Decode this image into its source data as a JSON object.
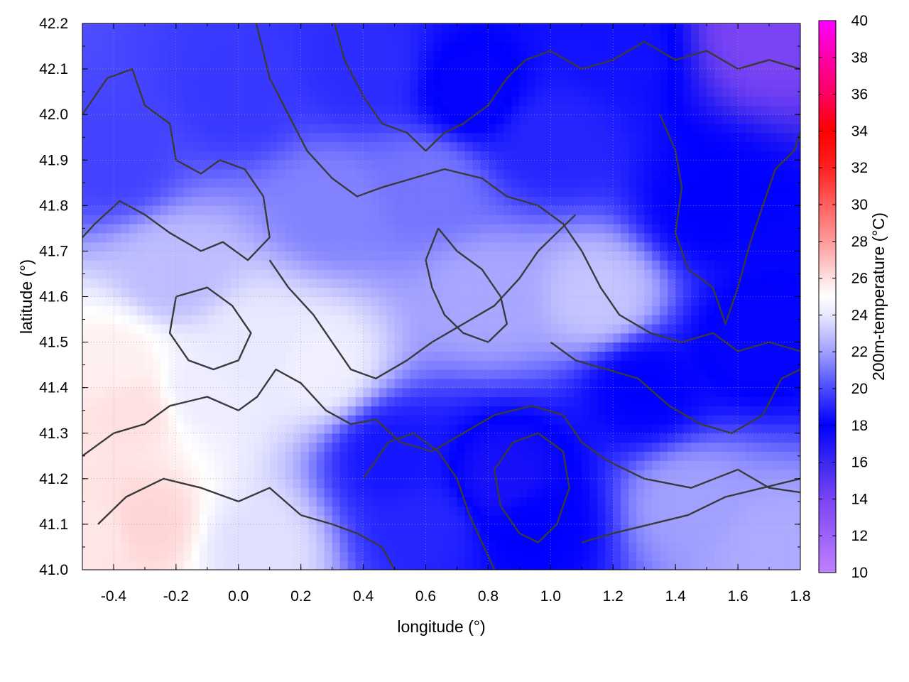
{
  "chart_data": {
    "type": "heatmap",
    "title": "",
    "xlabel": "longitude (°)",
    "ylabel": "latitude (°)",
    "colorbar_label": "200m-temperature (°C)",
    "xlim": [
      -0.5,
      1.8
    ],
    "ylim": [
      41.0,
      42.2
    ],
    "xticks": [
      "-0.4",
      "-0.2",
      "0.0",
      "0.2",
      "0.4",
      "0.6",
      "0.8",
      "1.0",
      "1.2",
      "1.4",
      "1.6",
      "1.8"
    ],
    "xtick_values": [
      -0.4,
      -0.2,
      0.0,
      0.2,
      0.4,
      0.6,
      0.8,
      1.0,
      1.2,
      1.4,
      1.6,
      1.8
    ],
    "yticks": [
      "41.0",
      "41.1",
      "41.2",
      "41.3",
      "41.4",
      "41.5",
      "41.6",
      "41.7",
      "41.8",
      "41.9",
      "42.0",
      "42.1",
      "42.2"
    ],
    "ytick_values": [
      41.0,
      41.1,
      41.2,
      41.3,
      41.4,
      41.5,
      41.6,
      41.7,
      41.8,
      41.9,
      42.0,
      42.1,
      42.2
    ],
    "colorbar_range": [
      10,
      40
    ],
    "colorbar_ticks": [
      "10",
      "12",
      "14",
      "16",
      "18",
      "20",
      "22",
      "24",
      "26",
      "28",
      "30",
      "32",
      "34",
      "36",
      "38",
      "40"
    ],
    "colorbar_tick_values": [
      10,
      12,
      14,
      16,
      18,
      20,
      22,
      24,
      26,
      28,
      30,
      32,
      34,
      36,
      38,
      40
    ],
    "colormap": [
      {
        "v": 10,
        "color": "#c080ff"
      },
      {
        "v": 14,
        "color": "#7a44f4"
      },
      {
        "v": 16,
        "color": "#3a28f0"
      },
      {
        "v": 18,
        "color": "#0000ff"
      },
      {
        "v": 20,
        "color": "#4a4aff"
      },
      {
        "v": 22,
        "color": "#a0a0ff"
      },
      {
        "v": 24,
        "color": "#e8e8ff"
      },
      {
        "v": 25,
        "color": "#ffffff"
      },
      {
        "v": 26,
        "color": "#ffe0e0"
      },
      {
        "v": 28,
        "color": "#ff9a9a"
      },
      {
        "v": 30,
        "color": "#ff6060"
      },
      {
        "v": 32,
        "color": "#ff2020"
      },
      {
        "v": 34,
        "color": "#ff0000"
      },
      {
        "v": 36,
        "color": "#ff0060"
      },
      {
        "v": 38,
        "color": "#ff00a8"
      },
      {
        "v": 40,
        "color": "#ff00ff"
      }
    ],
    "grid": true,
    "temperature_field": [
      {
        "lon": -0.45,
        "lat": 41.08,
        "t": 25.8
      },
      {
        "lon": -0.3,
        "lat": 41.1,
        "t": 26.3
      },
      {
        "lon": -0.35,
        "lat": 41.35,
        "t": 26.0
      },
      {
        "lon": -0.4,
        "lat": 41.45,
        "t": 25.5
      },
      {
        "lon": -0.1,
        "lat": 41.4,
        "t": 24.2
      },
      {
        "lon": 0.05,
        "lat": 41.5,
        "t": 24.0
      },
      {
        "lon": 0.25,
        "lat": 41.45,
        "t": 24.3
      },
      {
        "lon": 0.05,
        "lat": 41.05,
        "t": 23.8
      },
      {
        "lon": -0.2,
        "lat": 41.65,
        "t": 22.8
      },
      {
        "lon": 0.8,
        "lat": 41.6,
        "t": 22.2
      },
      {
        "lon": 1.15,
        "lat": 41.6,
        "t": 23.0
      },
      {
        "lon": 1.45,
        "lat": 41.15,
        "t": 22.0
      },
      {
        "lon": 1.7,
        "lat": 41.05,
        "t": 22.3
      },
      {
        "lon": 0.3,
        "lat": 41.8,
        "t": 21.3
      },
      {
        "lon": 0.6,
        "lat": 41.85,
        "t": 21.0
      },
      {
        "lon": -0.4,
        "lat": 41.9,
        "t": 19.8
      },
      {
        "lon": 0.0,
        "lat": 42.05,
        "t": 19.5
      },
      {
        "lon": 0.4,
        "lat": 42.1,
        "t": 19.2
      },
      {
        "lon": 0.75,
        "lat": 42.05,
        "t": 17.8
      },
      {
        "lon": 1.0,
        "lat": 41.95,
        "t": 19.0
      },
      {
        "lon": 1.5,
        "lat": 41.8,
        "t": 18.0
      },
      {
        "lon": 1.65,
        "lat": 41.5,
        "t": 17.8
      },
      {
        "lon": 1.3,
        "lat": 41.4,
        "t": 18.0
      },
      {
        "lon": 0.5,
        "lat": 41.25,
        "t": 18.6
      },
      {
        "lon": 0.85,
        "lat": 41.2,
        "t": 17.2
      },
      {
        "lon": 0.95,
        "lat": 41.1,
        "t": 18.0
      },
      {
        "lon": 0.6,
        "lat": 41.1,
        "t": 19.0
      },
      {
        "lon": 1.7,
        "lat": 42.18,
        "t": 14.0
      },
      {
        "lon": 1.2,
        "lat": 42.15,
        "t": 18.5
      }
    ],
    "contours": [
      [
        [
          -0.5,
          42.0
        ],
        [
          -0.42,
          42.08
        ],
        [
          -0.34,
          42.1
        ],
        [
          -0.3,
          42.02
        ],
        [
          -0.22,
          41.98
        ],
        [
          -0.2,
          41.9
        ],
        [
          -0.12,
          41.87
        ],
        [
          -0.06,
          41.9
        ],
        [
          0.02,
          41.88
        ],
        [
          0.08,
          41.82
        ],
        [
          0.1,
          41.73
        ],
        [
          0.03,
          41.68
        ],
        [
          -0.05,
          41.72
        ],
        [
          -0.12,
          41.7
        ],
        [
          -0.22,
          41.74
        ],
        [
          -0.3,
          41.78
        ],
        [
          -0.38,
          41.81
        ],
        [
          -0.46,
          41.76
        ],
        [
          -0.5,
          41.73
        ]
      ],
      [
        [
          -0.5,
          41.25
        ],
        [
          -0.4,
          41.3
        ],
        [
          -0.3,
          41.32
        ],
        [
          -0.22,
          41.36
        ],
        [
          -0.1,
          41.38
        ],
        [
          0.0,
          41.35
        ],
        [
          0.06,
          41.38
        ],
        [
          0.12,
          41.44
        ],
        [
          0.2,
          41.41
        ],
        [
          0.28,
          41.35
        ],
        [
          0.36,
          41.32
        ],
        [
          0.44,
          41.33
        ],
        [
          0.52,
          41.28
        ],
        [
          0.62,
          41.26
        ],
        [
          0.72,
          41.3
        ],
        [
          0.82,
          41.34
        ],
        [
          0.94,
          41.36
        ],
        [
          1.04,
          41.34
        ],
        [
          1.1,
          41.28
        ],
        [
          1.18,
          41.24
        ],
        [
          1.3,
          41.2
        ],
        [
          1.45,
          41.18
        ],
        [
          1.6,
          41.22
        ],
        [
          1.7,
          41.18
        ],
        [
          1.8,
          41.17
        ]
      ],
      [
        [
          -0.45,
          41.1
        ],
        [
          -0.36,
          41.16
        ],
        [
          -0.24,
          41.2
        ],
        [
          -0.12,
          41.18
        ],
        [
          0.0,
          41.15
        ],
        [
          0.1,
          41.18
        ],
        [
          0.2,
          41.12
        ],
        [
          0.3,
          41.1
        ],
        [
          0.38,
          41.08
        ],
        [
          0.46,
          41.05
        ],
        [
          0.5,
          41.0
        ]
      ],
      [
        [
          0.05,
          42.22
        ],
        [
          0.1,
          42.08
        ],
        [
          0.16,
          42.0
        ],
        [
          0.22,
          41.92
        ],
        [
          0.3,
          41.86
        ],
        [
          0.38,
          41.82
        ],
        [
          0.46,
          41.84
        ],
        [
          0.56,
          41.86
        ],
        [
          0.66,
          41.88
        ],
        [
          0.78,
          41.86
        ],
        [
          0.86,
          41.82
        ],
        [
          0.96,
          41.8
        ],
        [
          1.04,
          41.76
        ],
        [
          1.1,
          41.7
        ],
        [
          1.16,
          41.62
        ],
        [
          1.22,
          41.56
        ],
        [
          1.32,
          41.52
        ],
        [
          1.42,
          41.5
        ],
        [
          1.52,
          41.52
        ],
        [
          1.6,
          41.48
        ],
        [
          1.7,
          41.5
        ],
        [
          1.8,
          41.48
        ]
      ],
      [
        [
          0.3,
          42.22
        ],
        [
          0.34,
          42.12
        ],
        [
          0.4,
          42.04
        ],
        [
          0.46,
          41.98
        ],
        [
          0.54,
          41.96
        ],
        [
          0.6,
          41.92
        ],
        [
          0.66,
          41.96
        ],
        [
          0.72,
          41.98
        ],
        [
          0.8,
          42.02
        ],
        [
          0.86,
          42.08
        ],
        [
          0.92,
          42.12
        ],
        [
          1.0,
          42.14
        ],
        [
          1.1,
          42.1
        ],
        [
          1.2,
          42.12
        ],
        [
          1.3,
          42.16
        ],
        [
          1.4,
          42.12
        ],
        [
          1.5,
          42.14
        ],
        [
          1.6,
          42.1
        ],
        [
          1.7,
          42.12
        ],
        [
          1.8,
          42.1
        ]
      ],
      [
        [
          0.1,
          41.68
        ],
        [
          0.16,
          41.62
        ],
        [
          0.24,
          41.56
        ],
        [
          0.3,
          41.5
        ],
        [
          0.36,
          41.44
        ],
        [
          0.44,
          41.42
        ],
        [
          0.54,
          41.46
        ],
        [
          0.62,
          41.5
        ],
        [
          0.72,
          41.54
        ],
        [
          0.82,
          41.58
        ],
        [
          0.9,
          41.64
        ],
        [
          0.96,
          41.7
        ],
        [
          1.02,
          41.74
        ],
        [
          1.08,
          41.78
        ]
      ],
      [
        [
          0.4,
          41.2
        ],
        [
          0.48,
          41.28
        ],
        [
          0.56,
          41.3
        ],
        [
          0.64,
          41.26
        ],
        [
          0.7,
          41.2
        ],
        [
          0.74,
          41.12
        ],
        [
          0.78,
          41.06
        ],
        [
          0.82,
          41.0
        ]
      ],
      [
        [
          0.82,
          41.22
        ],
        [
          0.88,
          41.28
        ],
        [
          0.96,
          41.3
        ],
        [
          1.04,
          41.26
        ],
        [
          1.06,
          41.18
        ],
        [
          1.02,
          41.1
        ],
        [
          0.96,
          41.06
        ],
        [
          0.9,
          41.08
        ],
        [
          0.84,
          41.14
        ],
        [
          0.82,
          41.22
        ]
      ],
      [
        [
          1.0,
          41.5
        ],
        [
          1.08,
          41.46
        ],
        [
          1.18,
          41.44
        ],
        [
          1.28,
          41.42
        ],
        [
          1.38,
          41.36
        ],
        [
          1.48,
          41.32
        ],
        [
          1.58,
          41.3
        ],
        [
          1.68,
          41.34
        ],
        [
          1.74,
          41.42
        ],
        [
          1.8,
          41.44
        ]
      ],
      [
        [
          1.35,
          42.0
        ],
        [
          1.4,
          41.92
        ],
        [
          1.42,
          41.84
        ],
        [
          1.4,
          41.74
        ],
        [
          1.44,
          41.66
        ],
        [
          1.52,
          41.62
        ],
        [
          1.56,
          41.54
        ],
        [
          1.6,
          41.62
        ],
        [
          1.64,
          41.72
        ],
        [
          1.68,
          41.8
        ],
        [
          1.72,
          41.88
        ],
        [
          1.78,
          41.92
        ],
        [
          1.8,
          41.96
        ]
      ],
      [
        [
          -0.2,
          41.6
        ],
        [
          -0.1,
          41.62
        ],
        [
          -0.02,
          41.58
        ],
        [
          0.04,
          41.52
        ],
        [
          0.0,
          41.46
        ],
        [
          -0.08,
          41.44
        ],
        [
          -0.16,
          41.46
        ],
        [
          -0.22,
          41.52
        ],
        [
          -0.2,
          41.6
        ]
      ],
      [
        [
          0.64,
          41.75
        ],
        [
          0.7,
          41.7
        ],
        [
          0.78,
          41.66
        ],
        [
          0.84,
          41.6
        ],
        [
          0.86,
          41.54
        ],
        [
          0.8,
          41.5
        ],
        [
          0.72,
          41.52
        ],
        [
          0.66,
          41.56
        ],
        [
          0.62,
          41.62
        ],
        [
          0.6,
          41.68
        ],
        [
          0.64,
          41.75
        ]
      ],
      [
        [
          1.1,
          41.06
        ],
        [
          1.2,
          41.08
        ],
        [
          1.32,
          41.1
        ],
        [
          1.44,
          41.12
        ],
        [
          1.56,
          41.16
        ],
        [
          1.68,
          41.18
        ],
        [
          1.8,
          41.2
        ]
      ]
    ]
  }
}
